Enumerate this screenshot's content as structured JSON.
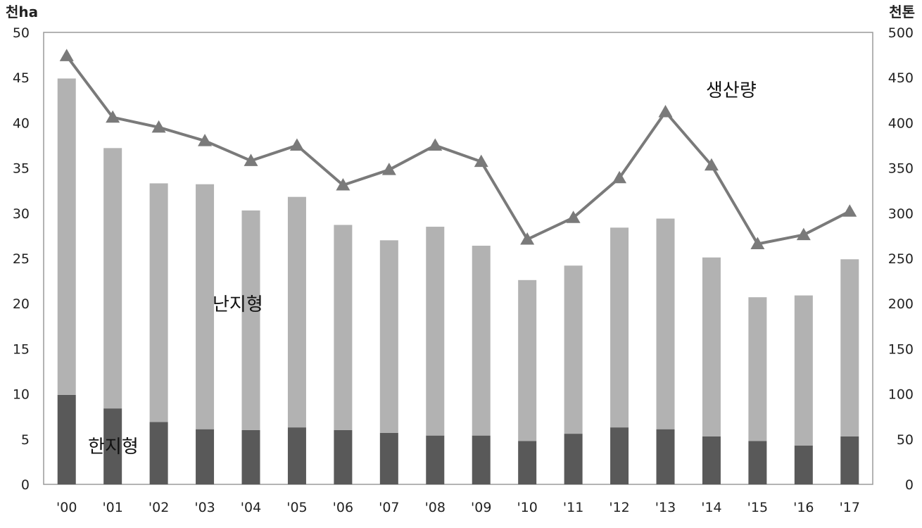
{
  "chart_data": {
    "type": "bar",
    "categories": [
      "'00",
      "'01",
      "'02",
      "'03",
      "'04",
      "'05",
      "'06",
      "'07",
      "'08",
      "'09",
      "'10",
      "'11",
      "'12",
      "'13",
      "'14",
      "'15",
      "'16",
      "'17"
    ],
    "y_left": {
      "unit": "천ha",
      "range": [
        0,
        50
      ],
      "ticks": [
        0,
        5,
        10,
        15,
        20,
        25,
        30,
        35,
        40,
        45,
        50
      ]
    },
    "y_right": {
      "unit": "천톤",
      "range": [
        0,
        500
      ],
      "ticks": [
        0,
        50,
        100,
        150,
        200,
        250,
        300,
        350,
        400,
        450,
        500
      ]
    },
    "series": [
      {
        "name": "한지형",
        "kind": "bar-stacked",
        "axis": "left",
        "color": "#595959",
        "values": [
          9.9,
          8.4,
          6.9,
          6.1,
          6.0,
          6.3,
          6.0,
          5.7,
          5.4,
          5.4,
          4.8,
          5.6,
          6.3,
          6.1,
          5.3,
          4.8,
          4.3,
          5.3
        ]
      },
      {
        "name": "난지형",
        "kind": "bar-stacked",
        "axis": "left",
        "color": "#b2b2b2",
        "values": [
          35.0,
          28.8,
          26.4,
          27.1,
          24.3,
          25.5,
          22.7,
          21.3,
          23.1,
          21.0,
          17.8,
          18.6,
          22.1,
          23.3,
          19.8,
          15.9,
          16.6,
          19.6
        ]
      },
      {
        "name": "생산량",
        "kind": "line",
        "axis": "right",
        "color": "#7a7a7a",
        "values": [
          474,
          406,
          395,
          380,
          358,
          375,
          331,
          348,
          375,
          357,
          271,
          295,
          339,
          412,
          353,
          266,
          276,
          302
        ]
      }
    ],
    "annotations": [
      {
        "text": "한지형",
        "series": "한지형"
      },
      {
        "text": "난지형",
        "series": "난지형"
      },
      {
        "text": "생산량",
        "series": "생산량"
      }
    ],
    "grid": false
  }
}
